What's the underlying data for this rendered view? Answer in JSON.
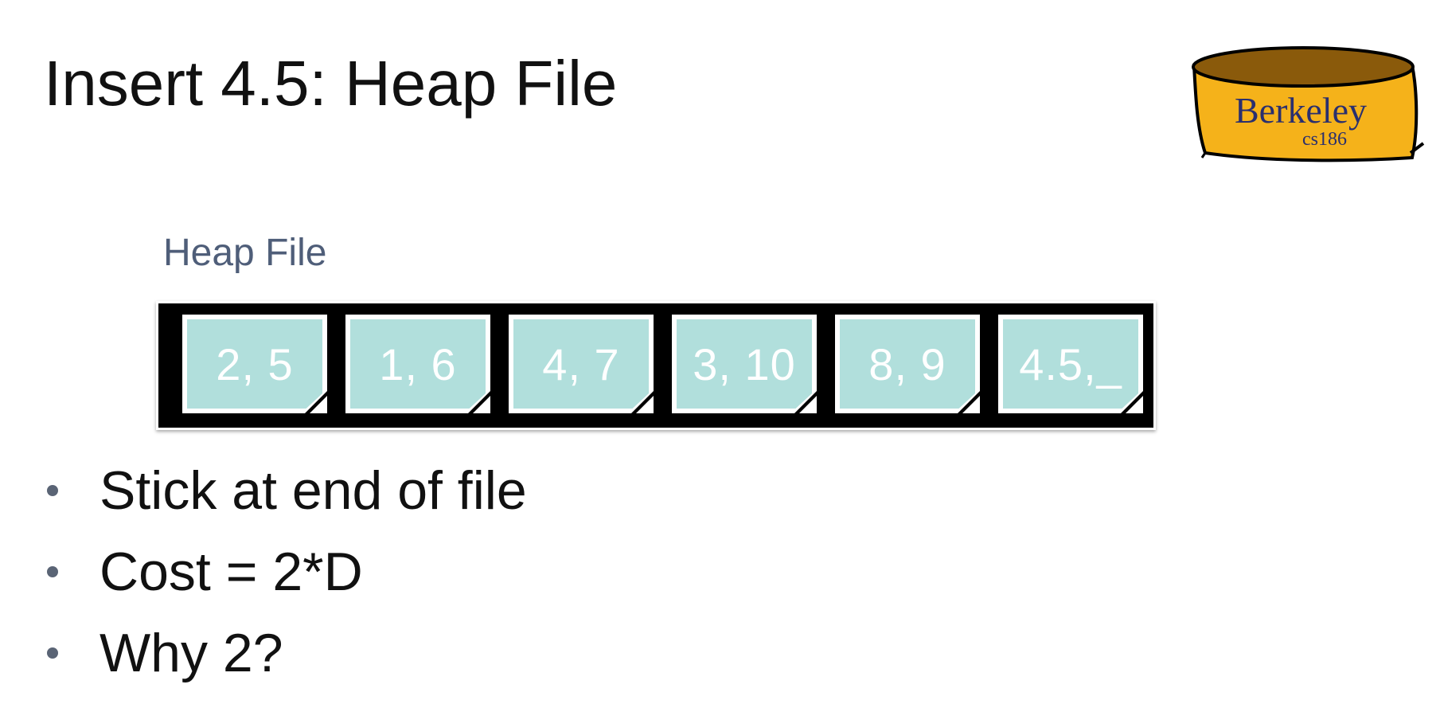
{
  "slide": {
    "title": "Insert 4.5: Heap File"
  },
  "logo": {
    "text": "Berkeley",
    "subtext": "cs186",
    "colors": {
      "body": "#f5b21a",
      "top": "#8a5a0b",
      "text": "#2a2f6e"
    }
  },
  "diagram": {
    "label": "Heap File",
    "pages": [
      {
        "text": "2, 5"
      },
      {
        "text": "1, 6"
      },
      {
        "text": "4, 7"
      },
      {
        "text": "3, 10"
      },
      {
        "text": "8, 9"
      },
      {
        "text": "4.5,_"
      }
    ],
    "colors": {
      "page": "#b1dfdc",
      "file": "#000000",
      "label": "#4f5e79"
    }
  },
  "bullets": [
    "Stick at end of file",
    "Cost = 2*D",
    "Why 2?"
  ]
}
